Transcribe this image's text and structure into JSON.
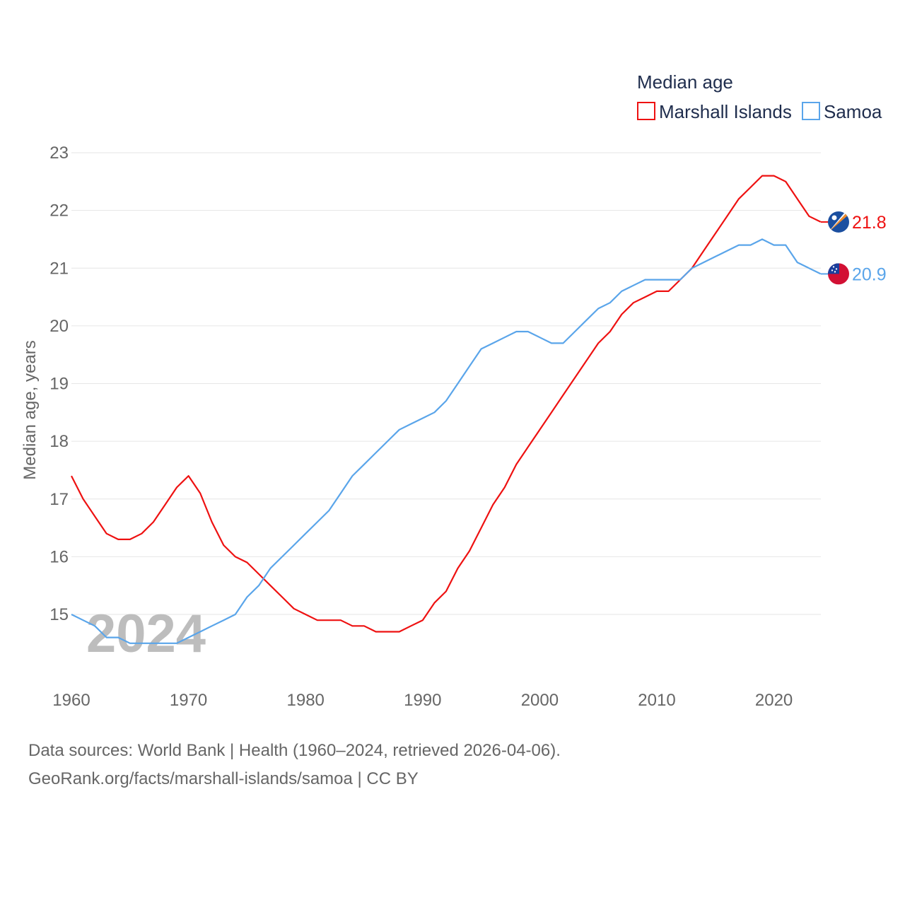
{
  "chart_data": {
    "type": "line",
    "title": "Median age",
    "xlabel": "",
    "ylabel": "Median age, years",
    "year_watermark": "2024",
    "xlim": [
      1960,
      2024
    ],
    "ylim": [
      14,
      23
    ],
    "yticks": [
      15,
      16,
      17,
      18,
      19,
      20,
      21,
      22,
      23
    ],
    "xticks": [
      1960,
      1970,
      1980,
      1990,
      2000,
      2010,
      2020
    ],
    "grid": true,
    "legend_placement": "top-right",
    "x": [
      1960,
      1961,
      1962,
      1963,
      1964,
      1965,
      1966,
      1967,
      1968,
      1969,
      1970,
      1971,
      1972,
      1973,
      1974,
      1975,
      1976,
      1977,
      1978,
      1979,
      1980,
      1981,
      1982,
      1983,
      1984,
      1985,
      1986,
      1987,
      1988,
      1989,
      1990,
      1991,
      1992,
      1993,
      1994,
      1995,
      1996,
      1997,
      1998,
      1999,
      2000,
      2001,
      2002,
      2003,
      2004,
      2005,
      2006,
      2007,
      2008,
      2009,
      2010,
      2011,
      2012,
      2013,
      2014,
      2015,
      2016,
      2017,
      2018,
      2019,
      2020,
      2021,
      2022,
      2023,
      2024
    ],
    "series": [
      {
        "name": "Marshall Islands",
        "color": "#ee1111",
        "end_label": "21.8",
        "flag": "marshall-islands-flag",
        "values": [
          17.4,
          17.0,
          16.7,
          16.4,
          16.3,
          16.3,
          16.4,
          16.6,
          16.9,
          17.2,
          17.4,
          17.1,
          16.6,
          16.2,
          16.0,
          15.9,
          15.7,
          15.5,
          15.3,
          15.1,
          15.0,
          14.9,
          14.9,
          14.9,
          14.8,
          14.8,
          14.7,
          14.7,
          14.7,
          14.8,
          14.9,
          15.2,
          15.4,
          15.8,
          16.1,
          16.5,
          16.9,
          17.2,
          17.6,
          17.9,
          18.2,
          18.5,
          18.8,
          19.1,
          19.4,
          19.7,
          19.9,
          20.2,
          20.4,
          20.5,
          20.6,
          20.6,
          20.8,
          21.0,
          21.3,
          21.6,
          21.9,
          22.2,
          22.4,
          22.6,
          22.6,
          22.5,
          22.2,
          21.9,
          21.8
        ]
      },
      {
        "name": "Samoa",
        "color": "#5aa5ea",
        "end_label": "20.9",
        "flag": "samoa-flag",
        "values": [
          15.0,
          14.9,
          14.8,
          14.6,
          14.6,
          14.5,
          14.5,
          14.5,
          14.5,
          14.5,
          14.6,
          14.7,
          14.8,
          14.9,
          15.0,
          15.3,
          15.5,
          15.8,
          16.0,
          16.2,
          16.4,
          16.6,
          16.8,
          17.1,
          17.4,
          17.6,
          17.8,
          18.0,
          18.2,
          18.3,
          18.4,
          18.5,
          18.7,
          19.0,
          19.3,
          19.6,
          19.7,
          19.8,
          19.9,
          19.9,
          19.8,
          19.7,
          19.7,
          19.9,
          20.1,
          20.3,
          20.4,
          20.6,
          20.7,
          20.8,
          20.8,
          20.8,
          20.8,
          21.0,
          21.1,
          21.2,
          21.3,
          21.4,
          21.4,
          21.5,
          21.4,
          21.4,
          21.1,
          21.0,
          20.9
        ]
      }
    ]
  },
  "footer": {
    "sources": "Data sources: World Bank | Health (1960–2024, retrieved 2026-04-06).",
    "link": "GeoRank.org/facts/marshall-islands/samoa | CC BY"
  }
}
